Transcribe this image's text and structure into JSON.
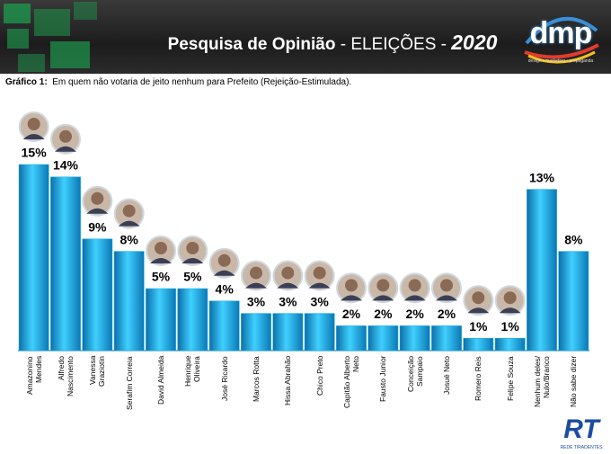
{
  "header": {
    "title_main": "Pesquisa de Opinião",
    "title_sub": " - ELEIÇÕES - ",
    "year": "2020",
    "logo": "dmp",
    "logo_tagline": "design • marketing • propaganda"
  },
  "footer": {
    "logo": "RT",
    "logo_tagline": "REDE TIRADENTES"
  },
  "chart_data": {
    "type": "bar",
    "subtitle_label": "Gráfico 1:",
    "subtitle": "Em quem não votaria de jeito nenhum para Prefeito (Rejeição-Estimulada).",
    "categories": [
      "Amazonino\nMendes",
      "Alfredo\nNascimento",
      "Vanessa\nGraziotin",
      "Serafim Correia",
      "David Almeida",
      "Henrique\nOliveira",
      "José Ricardo",
      "Marcos Rotta",
      "Hissa Abrahão",
      "Chico Preto",
      "Capitão Alberto\nNeto",
      "Fausto Junior",
      "Conceição\nSampaio",
      "Josué Neto",
      "Romero Reis",
      "Felipe Souza",
      "Nenhum deles/\nNulo/Branco",
      "Não sabe dizer"
    ],
    "values": [
      15,
      14,
      9,
      8,
      5,
      5,
      4,
      3,
      3,
      3,
      2,
      2,
      2,
      2,
      1,
      1,
      13,
      8
    ],
    "value_labels": [
      "15%",
      "14%",
      "9%",
      "8%",
      "5%",
      "5%",
      "4%",
      "3%",
      "3%",
      "3%",
      "2%",
      "2%",
      "2%",
      "2%",
      "1%",
      "1%",
      "13%",
      "8%"
    ],
    "color": "#17a9e1"
  }
}
